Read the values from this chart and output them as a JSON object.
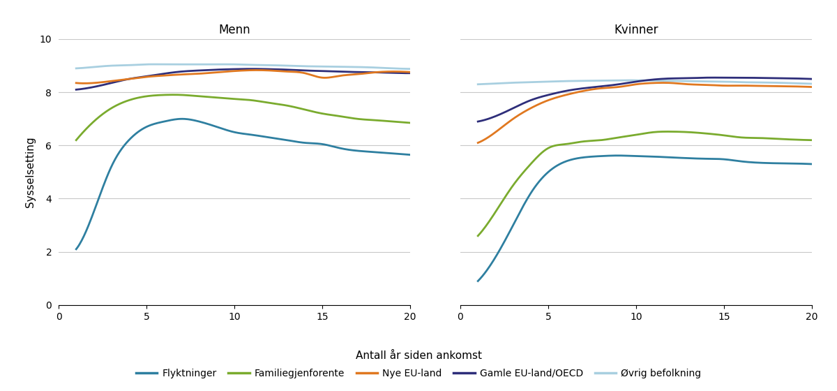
{
  "title_left": "Menn",
  "title_right": "Kvinner",
  "xlabel": "Antall år siden ankomst",
  "ylabel": "Sysselsetting",
  "xlim": [
    0,
    20
  ],
  "ylim": [
    0,
    10
  ],
  "yticks": [
    0,
    2,
    4,
    6,
    8,
    10
  ],
  "xticks": [
    0,
    5,
    10,
    15,
    20
  ],
  "legend_labels": [
    "Flyktninger",
    "Familiegjenforente",
    "Nye EU-land",
    "Gamle EU-land/OECD",
    "Øvrig befolkning"
  ],
  "colors": {
    "flyktninger": "#2e7fa0",
    "familiegjenforente": "#7aab2e",
    "nye_eu": "#e07820",
    "gamle_eu": "#2e2e7a",
    "ovrig": "#a8cfe0"
  },
  "menn": {
    "flyktninger": {
      "x": [
        1,
        2,
        3,
        4,
        5,
        6,
        7,
        8,
        9,
        10,
        11,
        12,
        13,
        14,
        15,
        16,
        17,
        18,
        19,
        20
      ],
      "y": [
        2.1,
        3.5,
        5.2,
        6.2,
        6.7,
        6.9,
        7.0,
        6.9,
        6.7,
        6.5,
        6.4,
        6.3,
        6.2,
        6.1,
        6.05,
        5.9,
        5.8,
        5.75,
        5.7,
        5.65
      ]
    },
    "familiegjenforente": {
      "x": [
        1,
        2,
        3,
        4,
        5,
        6,
        7,
        8,
        9,
        10,
        11,
        12,
        13,
        14,
        15,
        16,
        17,
        18,
        19,
        20
      ],
      "y": [
        6.2,
        6.9,
        7.4,
        7.7,
        7.85,
        7.9,
        7.9,
        7.85,
        7.8,
        7.75,
        7.7,
        7.6,
        7.5,
        7.35,
        7.2,
        7.1,
        7.0,
        6.95,
        6.9,
        6.85
      ]
    },
    "nye_eu": {
      "x": [
        1,
        2,
        3,
        4,
        5,
        6,
        7,
        8,
        9,
        10,
        11,
        12,
        13,
        14,
        15,
        16,
        17,
        18,
        19,
        20
      ],
      "y": [
        8.35,
        8.35,
        8.42,
        8.5,
        8.58,
        8.63,
        8.67,
        8.7,
        8.75,
        8.8,
        8.83,
        8.82,
        8.78,
        8.72,
        8.55,
        8.62,
        8.68,
        8.75,
        8.78,
        8.76
      ]
    },
    "gamle_eu": {
      "x": [
        1,
        2,
        3,
        4,
        5,
        6,
        7,
        8,
        9,
        10,
        11,
        12,
        13,
        14,
        15,
        16,
        17,
        18,
        19,
        20
      ],
      "y": [
        8.1,
        8.2,
        8.35,
        8.5,
        8.6,
        8.7,
        8.78,
        8.82,
        8.85,
        8.87,
        8.88,
        8.87,
        8.85,
        8.82,
        8.8,
        8.78,
        8.76,
        8.75,
        8.73,
        8.72
      ]
    },
    "ovrig": {
      "x": [
        1,
        2,
        3,
        4,
        5,
        6,
        7,
        8,
        9,
        10,
        11,
        12,
        13,
        14,
        15,
        16,
        17,
        18,
        19,
        20
      ],
      "y": [
        8.9,
        8.95,
        9.0,
        9.02,
        9.05,
        9.05,
        9.05,
        9.05,
        9.05,
        9.05,
        9.03,
        9.02,
        9.0,
        8.98,
        8.97,
        8.96,
        8.95,
        8.93,
        8.9,
        8.88
      ]
    }
  },
  "kvinner": {
    "flyktninger": {
      "x": [
        1,
        2,
        3,
        4,
        5,
        6,
        7,
        8,
        9,
        10,
        11,
        12,
        13,
        14,
        15,
        16,
        17,
        18,
        19,
        20
      ],
      "y": [
        0.9,
        1.8,
        3.0,
        4.2,
        5.0,
        5.4,
        5.55,
        5.6,
        5.62,
        5.6,
        5.58,
        5.55,
        5.52,
        5.5,
        5.48,
        5.4,
        5.35,
        5.33,
        5.32,
        5.3
      ]
    },
    "familiegjenforente": {
      "x": [
        1,
        2,
        3,
        4,
        5,
        6,
        7,
        8,
        9,
        10,
        11,
        12,
        13,
        14,
        15,
        16,
        17,
        18,
        19,
        20
      ],
      "y": [
        2.6,
        3.5,
        4.5,
        5.3,
        5.9,
        6.05,
        6.15,
        6.2,
        6.3,
        6.4,
        6.5,
        6.52,
        6.5,
        6.45,
        6.38,
        6.3,
        6.28,
        6.25,
        6.22,
        6.2
      ]
    },
    "nye_eu": {
      "x": [
        1,
        2,
        3,
        4,
        5,
        6,
        7,
        8,
        9,
        10,
        11,
        12,
        13,
        14,
        15,
        16,
        17,
        18,
        19,
        20
      ],
      "y": [
        6.1,
        6.5,
        7.0,
        7.4,
        7.7,
        7.9,
        8.05,
        8.15,
        8.2,
        8.3,
        8.35,
        8.35,
        8.3,
        8.28,
        8.25,
        8.25,
        8.24,
        8.23,
        8.22,
        8.2
      ]
    },
    "gamle_eu": {
      "x": [
        1,
        2,
        3,
        4,
        5,
        6,
        7,
        8,
        9,
        10,
        11,
        12,
        13,
        14,
        15,
        16,
        17,
        18,
        19,
        20
      ],
      "y": [
        6.9,
        7.1,
        7.4,
        7.7,
        7.9,
        8.05,
        8.15,
        8.22,
        8.3,
        8.4,
        8.48,
        8.52,
        8.53,
        8.55,
        8.55,
        8.55,
        8.54,
        8.53,
        8.52,
        8.5
      ]
    },
    "ovrig": {
      "x": [
        1,
        2,
        3,
        4,
        5,
        6,
        7,
        8,
        9,
        10,
        11,
        12,
        13,
        14,
        15,
        16,
        17,
        18,
        19,
        20
      ],
      "y": [
        8.3,
        8.33,
        8.36,
        8.38,
        8.4,
        8.42,
        8.43,
        8.44,
        8.45,
        8.45,
        8.44,
        8.43,
        8.42,
        8.41,
        8.4,
        8.38,
        8.37,
        8.36,
        8.34,
        8.32
      ]
    }
  }
}
